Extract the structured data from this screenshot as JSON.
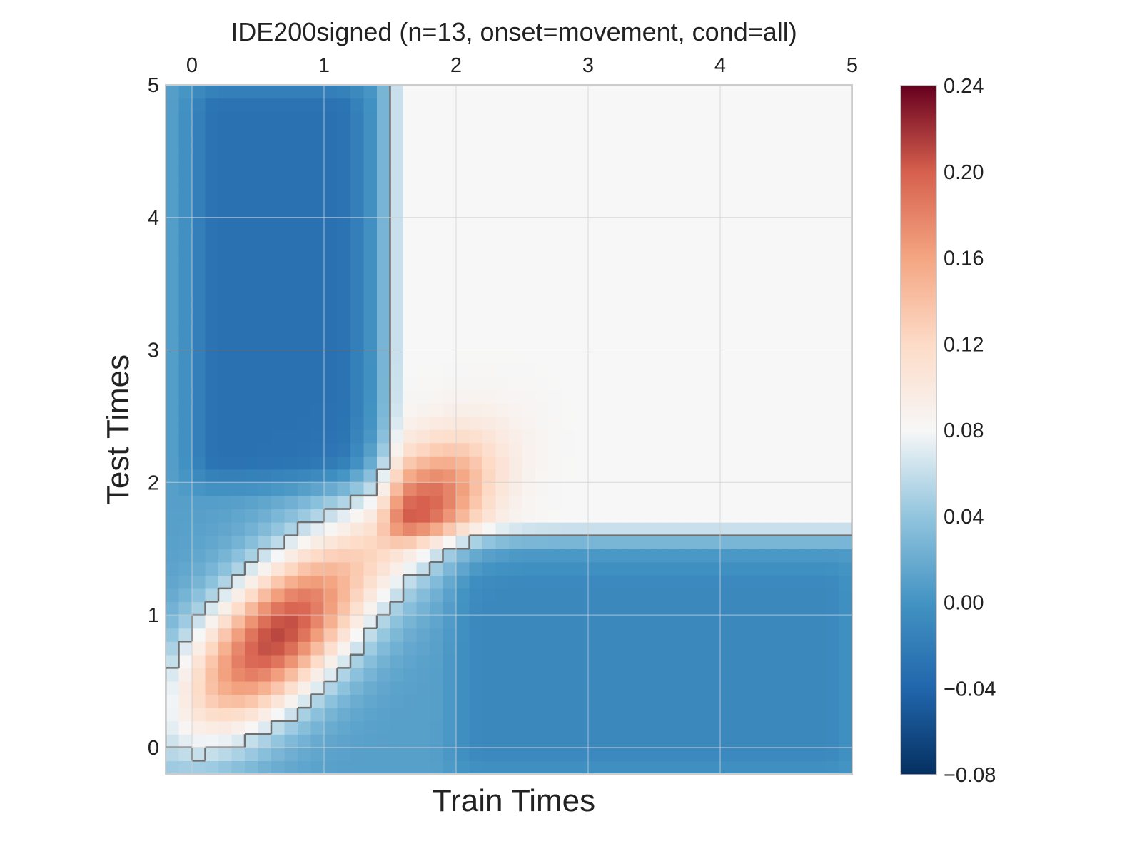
{
  "chart_data": {
    "type": "heatmap",
    "title": "IDE200signed (n=13, onset=movement, cond=all)",
    "xlabel": "Train Times",
    "ylabel": "Test Times",
    "xlim": [
      -0.2,
      5.0
    ],
    "ylim": [
      -0.2,
      5.0
    ],
    "x_ticks": [
      0,
      1,
      2,
      3,
      4,
      5
    ],
    "y_ticks": [
      0,
      1,
      2,
      3,
      4,
      5
    ],
    "x_tick_labels": [
      "0",
      "1",
      "2",
      "3",
      "4",
      "5"
    ],
    "y_tick_labels": [
      "0",
      "1",
      "2",
      "3",
      "4",
      "5"
    ],
    "x_axis_position": "top",
    "grid": true,
    "colormap": "RdBu_r",
    "color_range": [
      -0.08,
      0.24
    ],
    "colorbar": {
      "ticks": [
        0.24,
        0.2,
        0.16,
        0.12,
        0.08,
        0.04,
        0.0,
        -0.04,
        -0.08
      ],
      "tick_labels": [
        "0.24",
        "0.20",
        "0.16",
        "0.12",
        "0.08",
        "0.04",
        "0.00",
        "−0.04",
        "−0.08"
      ],
      "placement": "right"
    },
    "grid_resolution": [
      52,
      52
    ],
    "value_model": {
      "baseline": 0.01,
      "diagonal_blob": {
        "center": [
          0.65,
          0.85
        ],
        "amplitude": 0.2,
        "width_along": 0.7,
        "width_across": 0.32
      },
      "secondary_blob": {
        "center": [
          1.8,
          1.85
        ],
        "amplitude": 0.1,
        "width_along": 0.4,
        "width_across": 0.25
      },
      "plateau_region": {
        "x_min": 1.5,
        "y_min": 1.6,
        "value": 0.08
      },
      "blue_regions": [
        {
          "x_range": [
            0.0,
            1.3
          ],
          "y_range": [
            2.0,
            5.0
          ],
          "value": -0.03
        },
        {
          "x_range": [
            2.0,
            5.0
          ],
          "y_range": [
            -0.2,
            1.4
          ],
          "value": -0.01
        }
      ]
    },
    "significance_contour_color": "#707070"
  }
}
